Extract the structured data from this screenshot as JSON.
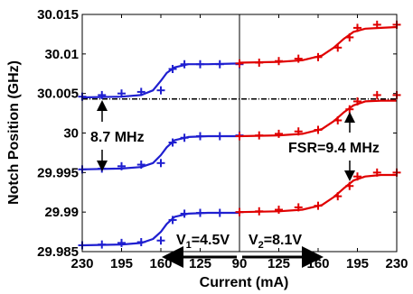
{
  "chart_data": {
    "type": "scatter",
    "xlabel": "Current (mA)",
    "ylabel": "Notch Position (GHz)",
    "ylim": [
      29.985,
      30.015
    ],
    "y_ticks": [
      {
        "value": 30.015,
        "label": "30.015"
      },
      {
        "value": 30.01,
        "label": "30.01"
      },
      {
        "value": 30.005,
        "label": "30.005"
      },
      {
        "value": 30.0,
        "label": "30"
      },
      {
        "value": 29.995,
        "label": "29.995"
      },
      {
        "value": 29.99,
        "label": "29.99"
      },
      {
        "value": 29.985,
        "label": "29.985"
      }
    ],
    "x_ticks": [
      {
        "pos": 0,
        "label": "230"
      },
      {
        "pos": 1,
        "label": "195"
      },
      {
        "pos": 2,
        "label": "160"
      },
      {
        "pos": 3,
        "label": "125"
      },
      {
        "pos": 4,
        "label": "90"
      },
      {
        "pos": 5,
        "label": "125"
      },
      {
        "pos": 6,
        "label": "160"
      },
      {
        "pos": 7,
        "label": "195"
      },
      {
        "pos": 8,
        "label": "230"
      }
    ],
    "axis_note": "x axis shows current decreasing 230→90 mA (left half, V1) then increasing 90→230 mA (right half, V2)",
    "reference_line_y": 30.0043,
    "series": [
      {
        "color": "#1f1fd0",
        "measured": [
          [
            0,
            29.9858
          ],
          [
            0.5,
            29.9859
          ],
          [
            1,
            29.9861
          ],
          [
            1.5,
            29.9862
          ],
          [
            2,
            29.9864
          ],
          [
            2.3,
            29.989
          ],
          [
            2.6,
            29.9898
          ],
          [
            3,
            29.9899
          ],
          [
            3.5,
            29.9899
          ],
          [
            4,
            29.99
          ]
        ],
        "fit": [
          [
            0,
            29.9858
          ],
          [
            1,
            29.9859
          ],
          [
            1.5,
            29.9861
          ],
          [
            1.8,
            29.9866
          ],
          [
            2.0,
            29.9875
          ],
          [
            2.15,
            29.9885
          ],
          [
            2.35,
            29.9894
          ],
          [
            2.7,
            29.9898
          ],
          [
            3.2,
            29.9899
          ],
          [
            4,
            29.9899
          ]
        ]
      },
      {
        "color": "#1f1fd0",
        "measured": [
          [
            0,
            29.9954
          ],
          [
            0.5,
            29.9955
          ],
          [
            1,
            29.9958
          ],
          [
            1.5,
            29.996
          ],
          [
            2,
            29.9962
          ],
          [
            2.3,
            29.9988
          ],
          [
            2.6,
            29.9994
          ],
          [
            3,
            29.9996
          ],
          [
            3.5,
            29.9996
          ],
          [
            4,
            29.9997
          ]
        ],
        "fit": [
          [
            0,
            29.9954
          ],
          [
            1,
            29.9955
          ],
          [
            1.5,
            29.9957
          ],
          [
            1.8,
            29.9962
          ],
          [
            2.0,
            29.9972
          ],
          [
            2.15,
            29.9982
          ],
          [
            2.35,
            29.9991
          ],
          [
            2.7,
            29.9995
          ],
          [
            3.2,
            29.9996
          ],
          [
            4,
            29.9996
          ]
        ]
      },
      {
        "color": "#1f1fd0",
        "measured": [
          [
            0,
            30.0046
          ],
          [
            0.5,
            30.0048
          ],
          [
            1,
            30.005
          ],
          [
            1.5,
            30.0052
          ],
          [
            2,
            30.0054
          ],
          [
            2.3,
            30.0081
          ],
          [
            2.6,
            30.0087
          ],
          [
            3,
            30.0087
          ],
          [
            3.5,
            30.0087
          ],
          [
            4,
            30.0087
          ]
        ],
        "fit": [
          [
            0,
            30.0045
          ],
          [
            1,
            30.0046
          ],
          [
            1.5,
            30.0048
          ],
          [
            1.8,
            30.0054
          ],
          [
            2.0,
            30.0066
          ],
          [
            2.15,
            30.0076
          ],
          [
            2.35,
            30.0083
          ],
          [
            2.7,
            30.0087
          ],
          [
            3.2,
            30.0087
          ],
          [
            4,
            30.0088
          ]
        ]
      },
      {
        "color": "#e00000",
        "measured": [
          [
            4,
            29.99
          ],
          [
            4.5,
            29.9901
          ],
          [
            5,
            29.9903
          ],
          [
            5.5,
            29.9906
          ],
          [
            6,
            29.9908
          ],
          [
            6.5,
            29.992
          ],
          [
            6.8,
            29.9933
          ],
          [
            7,
            29.9945
          ],
          [
            7.5,
            29.995
          ],
          [
            8,
            29.995
          ]
        ],
        "fit": [
          [
            4,
            29.99
          ],
          [
            5,
            29.9901
          ],
          [
            5.6,
            29.9903
          ],
          [
            6.1,
            29.9909
          ],
          [
            6.4,
            29.9919
          ],
          [
            6.65,
            29.993
          ],
          [
            6.9,
            29.994
          ],
          [
            7.2,
            29.9945
          ],
          [
            7.6,
            29.9947
          ],
          [
            8,
            29.9947
          ]
        ]
      },
      {
        "color": "#e00000",
        "measured": [
          [
            4,
            29.9996
          ],
          [
            4.5,
            29.9997
          ],
          [
            5,
            29.9999
          ],
          [
            5.5,
            30.0002
          ],
          [
            6,
            30.0004
          ],
          [
            6.5,
            30.0016
          ],
          [
            6.8,
            30.003
          ],
          [
            7,
            30.004
          ],
          [
            7.5,
            30.0048
          ],
          [
            8,
            30.0048
          ]
        ],
        "fit": [
          [
            4,
            29.9996
          ],
          [
            5,
            29.9997
          ],
          [
            5.6,
            29.9999
          ],
          [
            6.1,
            30.0005
          ],
          [
            6.4,
            30.0015
          ],
          [
            6.65,
            30.0026
          ],
          [
            6.9,
            30.0035
          ],
          [
            7.2,
            30.004
          ],
          [
            7.6,
            30.0041
          ],
          [
            8,
            30.0041
          ]
        ]
      },
      {
        "color": "#e00000",
        "measured": [
          [
            4,
            30.0088
          ],
          [
            4.5,
            30.0089
          ],
          [
            5,
            30.0091
          ],
          [
            5.5,
            30.0094
          ],
          [
            6,
            30.0096
          ],
          [
            6.5,
            30.0108
          ],
          [
            6.8,
            30.0121
          ],
          [
            7,
            30.0133
          ],
          [
            7.5,
            30.0137
          ],
          [
            8,
            30.0137
          ]
        ],
        "fit": [
          [
            4,
            30.0089
          ],
          [
            5,
            30.009
          ],
          [
            5.6,
            30.0092
          ],
          [
            6.1,
            30.0098
          ],
          [
            6.4,
            30.0108
          ],
          [
            6.65,
            30.0119
          ],
          [
            6.9,
            30.0128
          ],
          [
            7.2,
            30.0132
          ],
          [
            7.6,
            30.0133
          ],
          [
            8,
            30.0134
          ]
        ]
      }
    ],
    "annotations": {
      "notch_spacing": "8.7 MHz",
      "fsr_label": "FSR=9.4 MHz",
      "v1_prefix": "V",
      "v1_sub": "1",
      "v1_value": "=4.5V",
      "v2_prefix": "V",
      "v2_sub": "2",
      "v2_value": "=8.1V"
    }
  }
}
